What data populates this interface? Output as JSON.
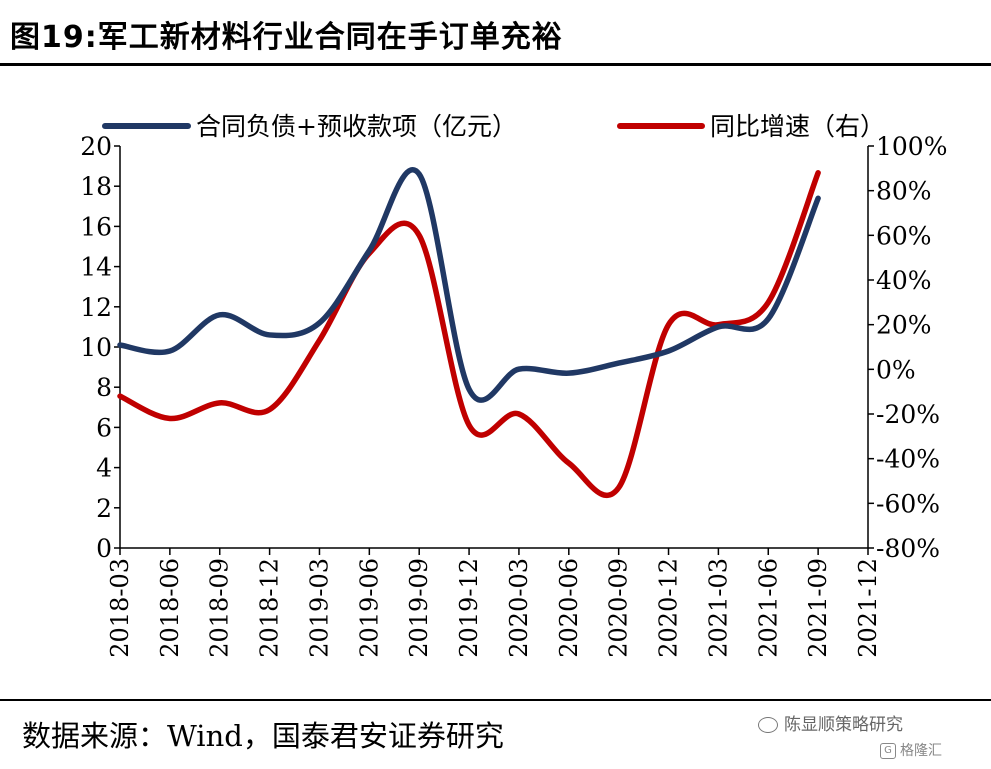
{
  "title": "图19:军工新材料行业合同在手订单充裕",
  "source": "数据来源：Wind，国泰君安证券研究",
  "watermark": {
    "wechat": "陈显顺策略研究",
    "brand": "格隆汇"
  },
  "chart_data": {
    "type": "line",
    "categories": [
      "2018-03",
      "2018-06",
      "2018-09",
      "2018-12",
      "2019-03",
      "2019-06",
      "2019-09",
      "2019-12",
      "2020-03",
      "2020-06",
      "2020-09",
      "2020-12",
      "2021-03",
      "2021-06",
      "2021-09",
      "2021-12"
    ],
    "y_left": {
      "min": 0,
      "max": 20,
      "step": 2,
      "ticks": [
        "0",
        "2",
        "4",
        "6",
        "8",
        "10",
        "12",
        "14",
        "16",
        "18",
        "20"
      ]
    },
    "y_right": {
      "min": -80,
      "max": 100,
      "step": 20,
      "ticks": [
        "-80%",
        "-60%",
        "-40%",
        "-20%",
        "0%",
        "20%",
        "40%",
        "60%",
        "80%",
        "100%"
      ]
    },
    "series": [
      {
        "name": "合同负债+预收款项（亿元）",
        "axis": "left",
        "color": "#203864",
        "values": [
          10.1,
          9.8,
          11.6,
          10.6,
          11.2,
          14.8,
          18.6,
          7.9,
          8.9,
          8.7,
          9.2,
          9.8,
          11.0,
          11.4,
          17.4,
          null
        ]
      },
      {
        "name": "同比增速（右）",
        "axis": "right",
        "color": "#c00000",
        "values": [
          -12,
          -22,
          -15,
          -18,
          13,
          52,
          60,
          -25,
          -20,
          -42,
          -53,
          20,
          20,
          30,
          88,
          null
        ]
      }
    ],
    "legend_position": "top",
    "grid": false
  }
}
